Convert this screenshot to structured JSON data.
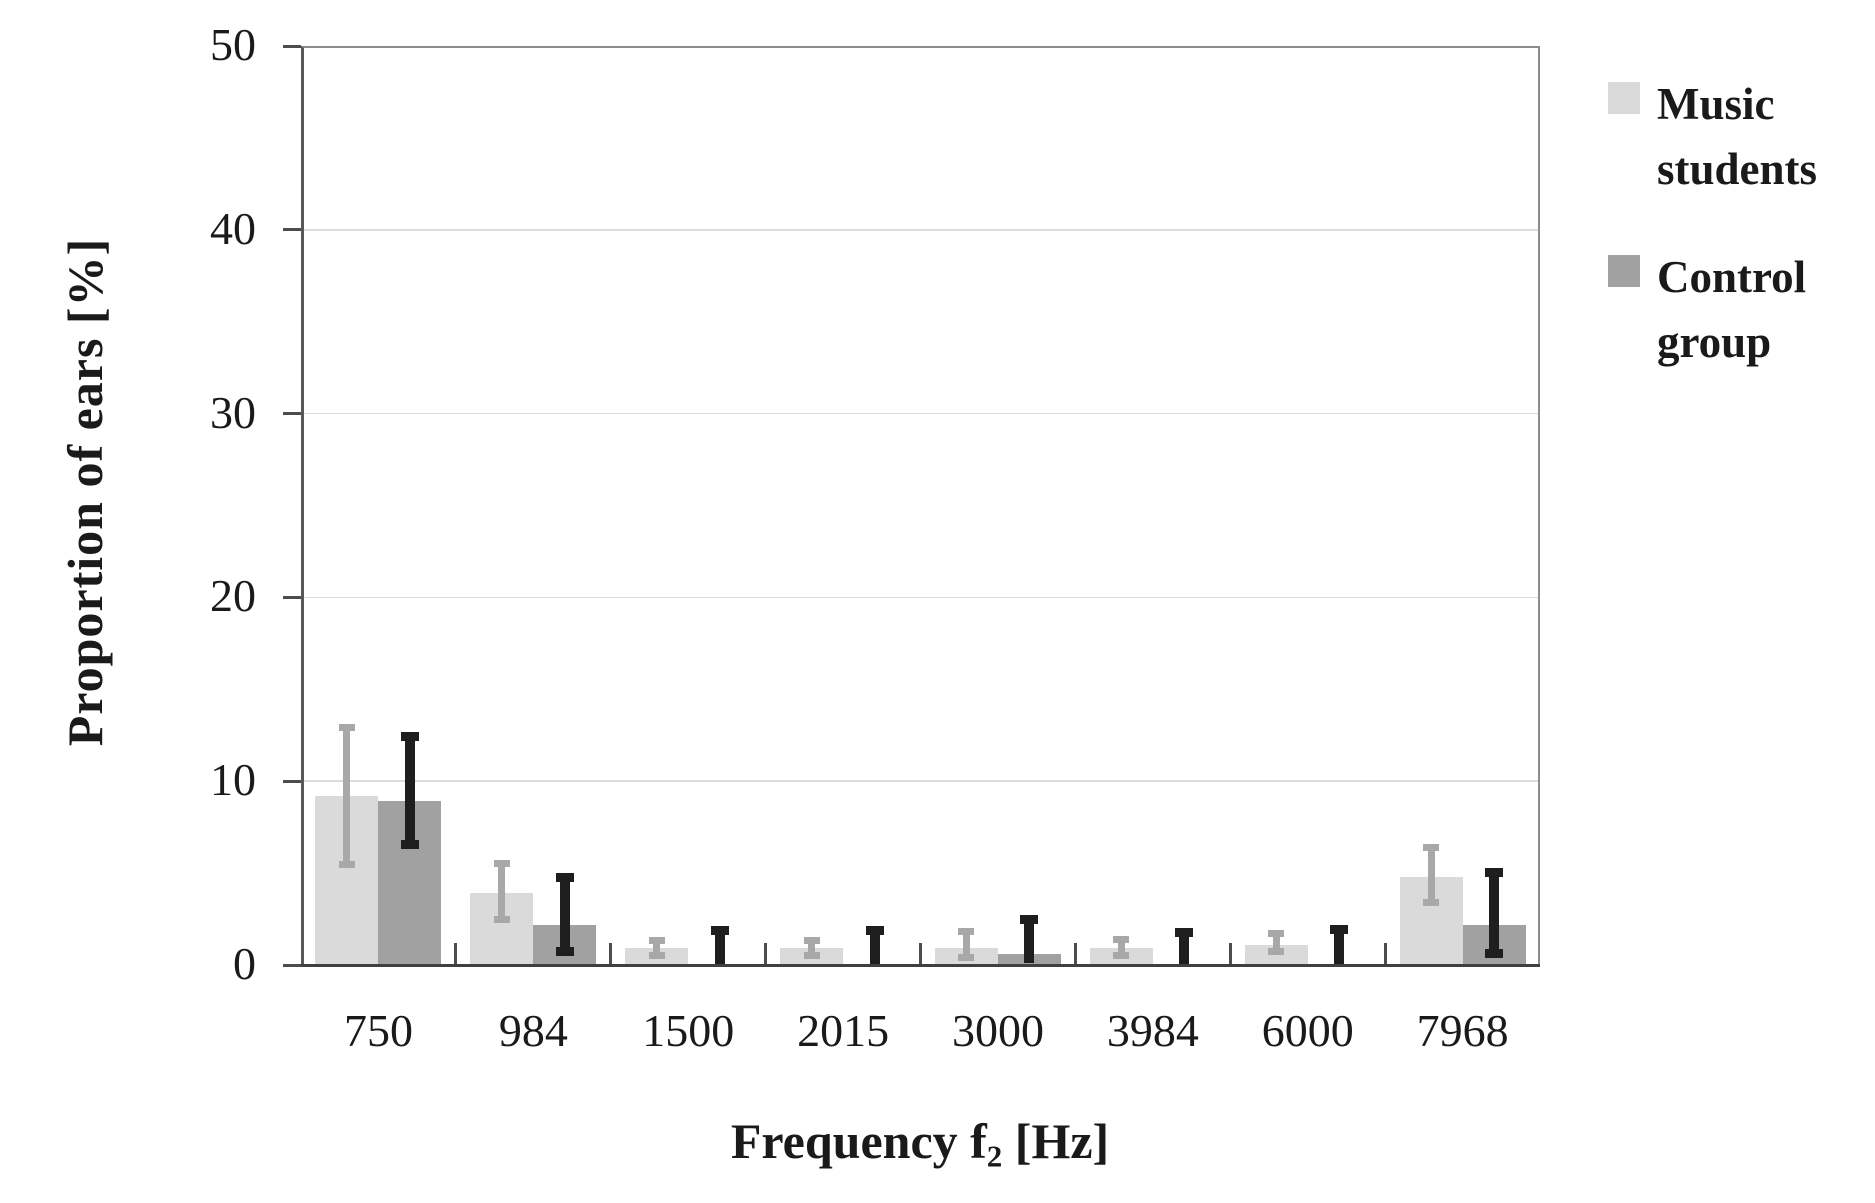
{
  "chart_data": {
    "type": "bar",
    "title": "",
    "ylabel": "Proportion of ears [%]",
    "xlabel": {
      "prefix": "Frequency f",
      "sub": "2",
      "suffix": " [Hz]"
    },
    "ylim": [
      0,
      50
    ],
    "yticks": [
      0,
      10,
      20,
      30,
      40,
      50
    ],
    "grid": true,
    "legend_position": "right",
    "categories": [
      "750",
      "984",
      "1500",
      "2015",
      "3000",
      "3984",
      "6000",
      "7968"
    ],
    "series": [
      {
        "name": "Music students",
        "bar_color": "#dadada",
        "error_color": "#a8a8a8",
        "values": [
          9.2,
          3.9,
          0.9,
          0.9,
          0.9,
          0.9,
          1.1,
          4.8
        ],
        "err_high": [
          13.1,
          5.7,
          1.5,
          1.5,
          2.0,
          1.6,
          1.9,
          6.6
        ],
        "err_low": [
          5.3,
          2.3,
          0.35,
          0.3,
          0.2,
          0.3,
          0.55,
          3.2
        ]
      },
      {
        "name": "Control group",
        "bar_color": "#a1a1a1",
        "error_color": "#1e1e1e",
        "values": [
          8.9,
          2.2,
          0,
          0,
          0.6,
          0,
          0,
          2.2
        ],
        "err_high": [
          12.7,
          5.0,
          2.1,
          2.1,
          2.7,
          2.0,
          2.2,
          5.3
        ],
        "err_low": [
          6.3,
          0.5,
          0,
          0,
          0.1,
          0,
          0,
          0.4
        ]
      }
    ]
  },
  "colors": {
    "background": "#ffffff",
    "gridline": "#dcdcdc",
    "frame": "#8c8c8c",
    "axis_left": "#595959",
    "axis_bottom": "#404040",
    "tick": "#4d4d4d",
    "text": "#1a1a1a"
  }
}
